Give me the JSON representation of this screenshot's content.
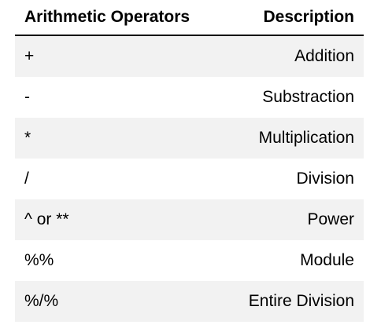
{
  "table": {
    "headers": {
      "operator": "Arithmetic Operators",
      "description": "Description"
    },
    "rows": [
      {
        "operator": "+",
        "description": "Addition"
      },
      {
        "operator": "-",
        "description": "Substraction"
      },
      {
        "operator": "*",
        "description": "Multiplication"
      },
      {
        "operator": "/",
        "description": "Division"
      },
      {
        "operator": "^ or **",
        "description": "Power"
      },
      {
        "operator": "%%",
        "description": "Module"
      },
      {
        "operator": "%/%",
        "description": "Entire Division"
      }
    ]
  },
  "colors": {
    "stripe": "#f2f2f2",
    "background": "#ffffff",
    "text": "#000000"
  }
}
